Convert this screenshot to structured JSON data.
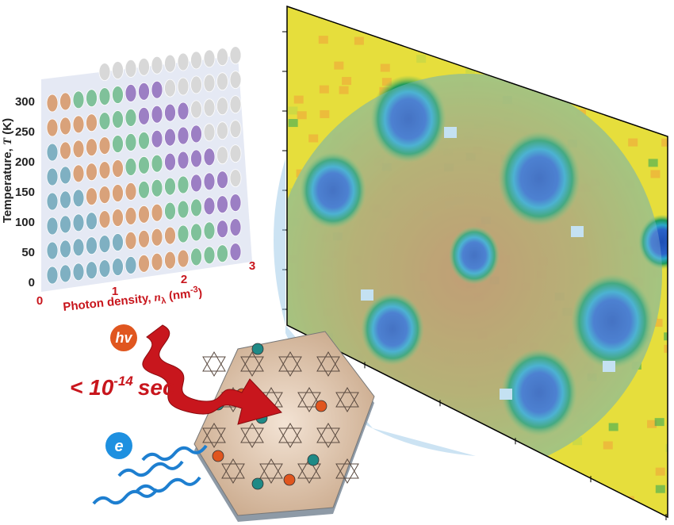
{
  "phase_diagram": {
    "y_label": [
      "Temperature, ",
      "T",
      " (K)"
    ],
    "y_ticks": [
      "0",
      "50",
      "100",
      "150",
      "200",
      "250",
      "300"
    ],
    "x_label": [
      "Photon density, ",
      "n",
      "λ",
      " (nm",
      "-3",
      ")"
    ],
    "x_ticks": [
      "0",
      "1",
      "2",
      "3"
    ]
  },
  "labels": {
    "photon": "hv",
    "time": [
      "< 10",
      "-14",
      "sec"
    ],
    "electron": "e"
  }
}
